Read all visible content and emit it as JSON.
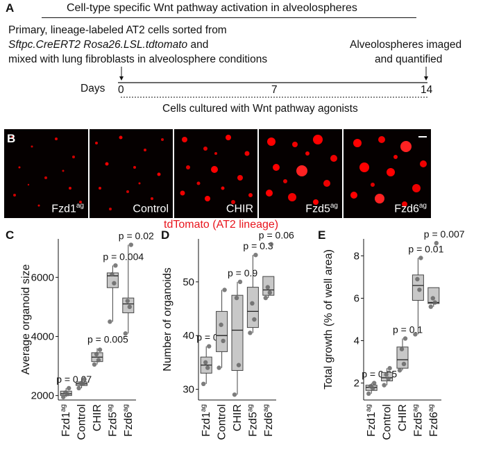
{
  "panel_a": {
    "letter": "A",
    "title": "Cell-type specific Wnt pathway activation in alveolospheres",
    "desc_line1": "Primary, lineage-labeled AT2 cells sorted from",
    "desc_line2": "Sftpc.CreERT2 Rosa26.LSL.tdtomato",
    "desc_line2_suffix": " and",
    "desc_line3": "mixed with lung fibroblasts in alveolosphere conditions",
    "end_line1": "Alveolospheres imaged",
    "end_line2": "and quantified",
    "days_label": "Days",
    "day_ticks": [
      "0",
      "7",
      "14"
    ],
    "culture_label": "Cells cultured with Wnt pathway agonists"
  },
  "panel_b": {
    "letter": "B",
    "caption": "tdTomato (AT2 lineage)",
    "caption_color": "#e8141c",
    "tiles": [
      {
        "base": "Fzd1",
        "sup": "ag"
      },
      {
        "base": "Control",
        "sup": ""
      },
      {
        "base": "CHIR",
        "sup": ""
      },
      {
        "base": "Fzd5",
        "sup": "ag"
      },
      {
        "base": "Fzd6",
        "sup": "ag"
      }
    ]
  },
  "chart_data": [
    {
      "type": "box",
      "letter": "C",
      "ylabel": "Average organoid size",
      "ylim": [
        1850,
        7300
      ],
      "yticks": [
        2000,
        4000,
        6000
      ],
      "categories": [
        {
          "base": "Fzd1",
          "sup": "ag"
        },
        {
          "base": "Control",
          "sup": ""
        },
        {
          "base": "CHIR",
          "sup": ""
        },
        {
          "base": "Fzd5",
          "sup": "ag"
        },
        {
          "base": "Fzd6",
          "sup": "ag"
        }
      ],
      "boxes": [
        {
          "whisker_low": 1950,
          "q1": 2000,
          "median": 2060,
          "q3": 2150,
          "whisker_high": 2250
        },
        {
          "whisker_low": 2250,
          "q1": 2340,
          "median": 2400,
          "q3": 2460,
          "whisker_high": 2550
        },
        {
          "whisker_low": 3050,
          "q1": 3150,
          "median": 3300,
          "q3": 3450,
          "whisker_high": 3600
        },
        {
          "whisker_low": 4500,
          "q1": 5650,
          "median": 6050,
          "q3": 6150,
          "whisker_high": 6400
        },
        {
          "whisker_low": 4100,
          "q1": 4800,
          "median": 5100,
          "q3": 5300,
          "whisker_high": 7100
        }
      ],
      "points": [
        [
          1950,
          2050,
          2100,
          2250
        ],
        [
          2250,
          2400,
          2420,
          2550
        ],
        [
          3050,
          3200,
          3400,
          3550
        ],
        [
          4500,
          5800,
          6100,
          6400
        ],
        [
          4100,
          5000,
          5200,
          7100
        ]
      ],
      "annotations": [
        "p = 0.07",
        "",
        "p = 0.005",
        "p = 0.004",
        "p = 0.02"
      ]
    },
    {
      "type": "box",
      "letter": "D",
      "ylabel": "Number of organoids",
      "ylim": [
        28,
        58
      ],
      "yticks": [
        30,
        40,
        50
      ],
      "categories": [
        {
          "base": "Fzd1",
          "sup": "ag"
        },
        {
          "base": "Control",
          "sup": ""
        },
        {
          "base": "CHIR",
          "sup": ""
        },
        {
          "base": "Fzd5",
          "sup": "ag"
        },
        {
          "base": "Fzd6",
          "sup": "ag"
        }
      ],
      "boxes": [
        {
          "whisker_low": 31,
          "q1": 33,
          "median": 34.5,
          "q3": 36,
          "whisker_high": 38
        },
        {
          "whisker_low": 34,
          "q1": 37,
          "median": 40,
          "q3": 44.5,
          "whisker_high": 48.5
        },
        {
          "whisker_low": 29,
          "q1": 33.5,
          "median": 41,
          "q3": 47.5,
          "whisker_high": 50
        },
        {
          "whisker_low": 40.5,
          "q1": 41.5,
          "median": 44.5,
          "q3": 49,
          "whisker_high": 55
        },
        {
          "whisker_low": 47,
          "q1": 47.5,
          "median": 48.5,
          "q3": 51,
          "whisker_high": 51
        }
      ],
      "points": [
        [
          31,
          34,
          35,
          38
        ],
        [
          34,
          39,
          42,
          48.5
        ],
        [
          29,
          34.5,
          47,
          50
        ],
        [
          40.5,
          43,
          46,
          55
        ],
        [
          47,
          48,
          49,
          57
        ]
      ],
      "annotations": [
        "p = 0.2",
        "",
        "p = 0.9",
        "p = 0.3",
        "p = 0.06"
      ]
    },
    {
      "type": "box",
      "letter": "E",
      "ylabel": "Total growth (% of well area)",
      "ylim": [
        1.2,
        8.8
      ],
      "yticks": [
        2,
        4,
        6,
        8
      ],
      "categories": [
        {
          "base": "Fzd1",
          "sup": "ag"
        },
        {
          "base": "Control",
          "sup": ""
        },
        {
          "base": "CHIR",
          "sup": ""
        },
        {
          "base": "Fzd5",
          "sup": "ag"
        },
        {
          "base": "Fzd6",
          "sup": "ag"
        }
      ],
      "boxes": [
        {
          "whisker_low": 1.5,
          "q1": 1.65,
          "median": 1.8,
          "q3": 1.9,
          "whisker_high": 2.0
        },
        {
          "whisker_low": 1.9,
          "q1": 2.1,
          "median": 2.25,
          "q3": 2.5,
          "whisker_high": 2.7
        },
        {
          "whisker_low": 2.6,
          "q1": 2.7,
          "median": 3.1,
          "q3": 3.7,
          "whisker_high": 4.1
        },
        {
          "whisker_low": 4.3,
          "q1": 5.9,
          "median": 6.6,
          "q3": 7.1,
          "whisker_high": 7.9
        },
        {
          "whisker_low": 5.6,
          "q1": 5.75,
          "median": 5.8,
          "q3": 6.5,
          "whisker_high": 6.5
        }
      ],
      "points": [
        [
          1.5,
          1.75,
          1.85,
          2.0
        ],
        [
          1.9,
          2.2,
          2.4,
          2.7
        ],
        [
          2.6,
          2.9,
          3.6,
          4.1
        ],
        [
          4.3,
          6.4,
          6.9,
          7.9
        ],
        [
          5.6,
          5.8,
          6.0,
          8.6
        ]
      ],
      "annotations": [
        "p = 0.05",
        "",
        "p = 0.1",
        "p = 0.01",
        "p = 0.007"
      ]
    }
  ]
}
